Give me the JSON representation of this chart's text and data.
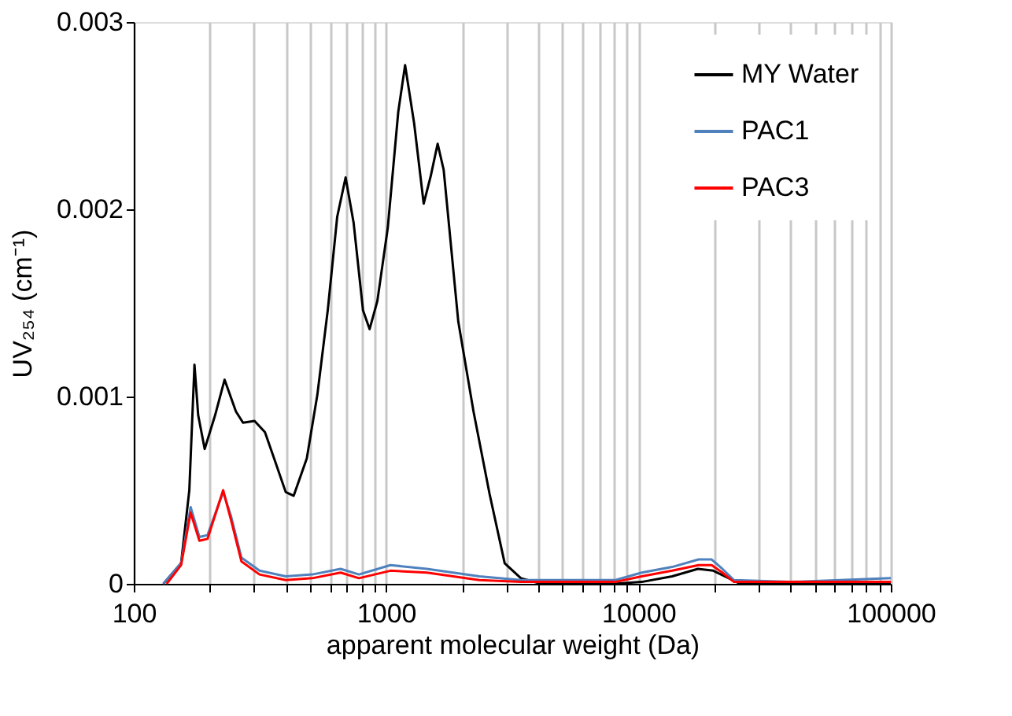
{
  "chart_data": {
    "type": "line",
    "xlabel": "apparent molecular weight (Da)",
    "ylabel": "UV₂₅₄ (cm⁻¹)",
    "xlim": [
      100,
      100000
    ],
    "ylim": [
      0,
      0.003
    ],
    "log": "x",
    "grid": "x",
    "legend": "top right",
    "line_style": "solid",
    "marker": "none",
    "xticks": [
      100,
      {
        "value": 200,
        "label": null
      },
      {
        "value": 300,
        "label": null
      },
      {
        "value": 400,
        "label": null
      },
      {
        "value": 500,
        "label": null
      },
      {
        "value": 600,
        "label": null
      },
      {
        "value": 700,
        "label": null
      },
      {
        "value": 800,
        "label": null
      },
      {
        "value": 900,
        "label": null
      },
      1000,
      {
        "value": 2000,
        "label": null
      },
      {
        "value": 3000,
        "label": null
      },
      {
        "value": 4000,
        "label": null
      },
      {
        "value": 5000,
        "label": null
      },
      {
        "value": 6000,
        "label": null
      },
      {
        "value": 7000,
        "label": null
      },
      {
        "value": 8000,
        "label": null
      },
      {
        "value": 9000,
        "label": null
      },
      10000,
      {
        "value": 20000,
        "label": null
      },
      {
        "value": 30000,
        "label": null
      },
      {
        "value": 40000,
        "label": null
      },
      {
        "value": 50000,
        "label": null
      },
      {
        "value": 60000,
        "label": null
      },
      {
        "value": 70000,
        "label": null
      },
      {
        "value": 80000,
        "label": null
      },
      {
        "value": 90000,
        "label": null
      },
      100000
    ],
    "yticks": [
      0,
      0.001,
      0.002,
      0.003
    ],
    "series": [
      {
        "name": "MY Water",
        "color": "#000000",
        "x": [
          131,
          154,
          166,
          174,
          180,
          191,
          210,
          229,
          254,
          271,
          301,
          331,
          364,
          400,
          430,
          485,
          534,
          587,
          640,
          691,
          743,
          810,
          860,
          923,
          1015,
          1117,
          1189,
          1291,
          1409,
          1504,
          1600,
          1691,
          1932,
          2220,
          2570,
          2950,
          3420,
          4130,
          8000,
          10300,
          13600,
          17200,
          19800,
          25300,
          50000,
          100000
        ],
        "values": [
          0,
          0.00011,
          0.0005,
          0.00117,
          0.0009,
          0.00072,
          0.0009,
          0.00109,
          0.00092,
          0.00086,
          0.00087,
          0.00081,
          0.00065,
          0.00049,
          0.00047,
          0.00067,
          0.00101,
          0.00146,
          0.00196,
          0.00217,
          0.00193,
          0.00146,
          0.00136,
          0.00151,
          0.0019,
          0.00252,
          0.00277,
          0.00246,
          0.00203,
          0.00218,
          0.00235,
          0.00221,
          0.0014,
          0.00092,
          0.00048,
          0.00011,
          3e-05,
          0,
          0,
          1e-05,
          4e-05,
          8e-05,
          7e-05,
          0,
          0,
          0
        ]
      },
      {
        "name": "PAC1",
        "color": "#4f81bd",
        "x": [
          131,
          154,
          168,
          182,
          196,
          226,
          243,
          267,
          315,
          400,
          510,
          660,
          780,
          1040,
          1450,
          2340,
          3420,
          5000,
          8100,
          10300,
          13600,
          17300,
          19500,
          21500,
          23900,
          40000,
          100000
        ],
        "values": [
          0,
          0.00011,
          0.00041,
          0.00025,
          0.00026,
          0.00049,
          0.00036,
          0.00014,
          7e-05,
          4e-05,
          5e-05,
          8e-05,
          5e-05,
          0.0001,
          8e-05,
          4e-05,
          2e-05,
          2e-05,
          2e-05,
          6e-05,
          9e-05,
          0.00013,
          0.00013,
          8e-05,
          2e-05,
          1e-05,
          3e-05
        ]
      },
      {
        "name": "PAC3",
        "color": "#ff0000",
        "x": [
          135,
          154,
          168,
          182,
          196,
          226,
          243,
          267,
          315,
          400,
          510,
          660,
          780,
          1040,
          1450,
          2340,
          3420,
          5000,
          8100,
          10300,
          13600,
          17300,
          19500,
          21500,
          23900,
          40000,
          100000
        ],
        "values": [
          0,
          0.0001,
          0.00038,
          0.00023,
          0.00024,
          0.0005,
          0.00034,
          0.00012,
          5e-05,
          2e-05,
          3e-05,
          6e-05,
          3e-05,
          7e-05,
          6e-05,
          2e-05,
          1e-05,
          1e-05,
          1e-05,
          4e-05,
          7e-05,
          0.0001,
          0.0001,
          6e-05,
          1e-05,
          1e-05,
          1e-05
        ]
      }
    ]
  }
}
